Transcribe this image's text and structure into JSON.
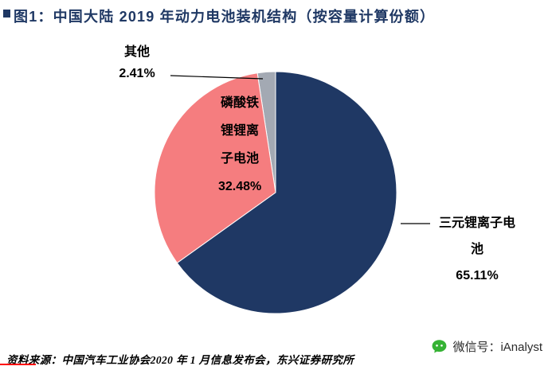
{
  "header": {
    "title": "图1：中国大陆 2019 年动力电池装机结构（按容量计算份额）"
  },
  "chart_data": {
    "type": "pie",
    "title": "中国大陆 2019 年动力电池装机结构（按容量计算份额）",
    "unit": "%",
    "start_angle_deg": 0,
    "direction": "clockwise",
    "legend_position": "none",
    "slices": [
      {
        "label": "三元锂离子电池",
        "value": 65.11,
        "pct_label": "65.11%",
        "color": "#1F3864"
      },
      {
        "label": "磷酸铁锂锂离子电池",
        "value": 32.48,
        "pct_label": "32.48%",
        "color": "#F57D7F"
      },
      {
        "label": "其他",
        "value": 2.41,
        "pct_label": "2.41%",
        "color": "#A3A9B3"
      }
    ]
  },
  "icons": {
    "wechat_icon": "green-wechat-speech-bubble"
  },
  "footer": {
    "source": "资料来源：中国汽车工业协会2020 年 1 月信息发布会，东兴证券研究所",
    "wechat_label": "微信号：iAnalyst"
  }
}
